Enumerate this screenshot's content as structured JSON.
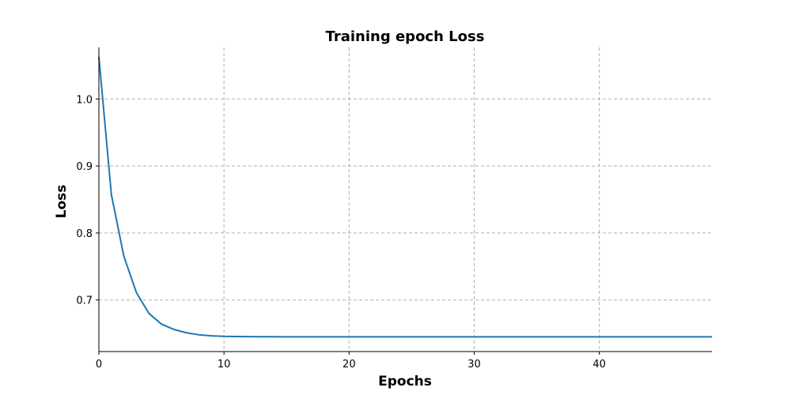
{
  "chart_data": {
    "type": "line",
    "title": "Training epoch Loss",
    "xlabel": "Epochs",
    "ylabel": "Loss",
    "xlim": [
      0,
      49
    ],
    "ylim": [
      0.623,
      1.077
    ],
    "xticks": [
      0,
      10,
      20,
      30,
      40
    ],
    "yticks": [
      0.7,
      0.8,
      0.9,
      1.0
    ],
    "grid": true,
    "series": [
      {
        "color": "#1f77b4",
        "x": [
          0,
          1,
          2,
          3,
          4,
          5,
          6,
          7,
          8,
          9,
          10,
          11,
          12,
          13,
          14,
          15,
          16,
          17,
          18,
          19,
          20,
          21,
          22,
          23,
          24,
          25,
          26,
          27,
          28,
          29,
          30,
          31,
          32,
          33,
          34,
          35,
          36,
          37,
          38,
          39,
          40,
          41,
          42,
          43,
          44,
          45,
          46,
          47,
          48,
          49
        ],
        "values": [
          1.063,
          0.857,
          0.765,
          0.711,
          0.68,
          0.664,
          0.656,
          0.651,
          0.648,
          0.6465,
          0.6457,
          0.6454,
          0.6452,
          0.6451,
          0.6451,
          0.645,
          0.645,
          0.645,
          0.645,
          0.645,
          0.645,
          0.645,
          0.645,
          0.645,
          0.645,
          0.645,
          0.645,
          0.645,
          0.645,
          0.645,
          0.645,
          0.645,
          0.645,
          0.645,
          0.645,
          0.645,
          0.645,
          0.645,
          0.645,
          0.645,
          0.645,
          0.645,
          0.645,
          0.645,
          0.645,
          0.645,
          0.645,
          0.645,
          0.645,
          0.645
        ]
      }
    ]
  }
}
